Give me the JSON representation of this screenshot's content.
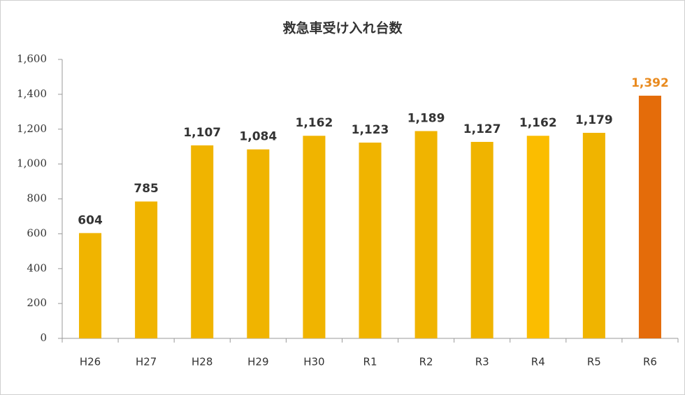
{
  "chart_data": {
    "type": "bar",
    "title": "救急車受け入れ台数",
    "categories": [
      "H26",
      "H27",
      "H28",
      "H29",
      "H30",
      "R1",
      "R2",
      "R3",
      "R4",
      "R5",
      "R6"
    ],
    "values": [
      604,
      785,
      1107,
      1084,
      1162,
      1123,
      1189,
      1127,
      1162,
      1179,
      1392
    ],
    "value_labels": [
      "604",
      "785",
      "1,107",
      "1,084",
      "1,162",
      "1,123",
      "1,189",
      "1,127",
      "1,162",
      "1,179",
      "1,392"
    ],
    "colors": [
      "#f0b400",
      "#f0b400",
      "#f0b400",
      "#f0b400",
      "#f0b400",
      "#f0b400",
      "#f0b400",
      "#f0b400",
      "#fbbd00",
      "#f0b400",
      "#e46c0a"
    ],
    "value_label_colors": [
      "#333333",
      "#333333",
      "#333333",
      "#333333",
      "#333333",
      "#333333",
      "#333333",
      "#333333",
      "#333333",
      "#333333",
      "#e98a1e"
    ],
    "ylim": [
      0,
      1600
    ],
    "yticks": [
      0,
      200,
      400,
      600,
      800,
      {
        "value": 1000,
        "label": "1,000"
      },
      {
        "value": 1200,
        "label": "1,200"
      },
      {
        "value": 1400,
        "label": "1,400"
      },
      {
        "value": 1600,
        "label": "1,600"
      }
    ],
    "grid": false
  }
}
